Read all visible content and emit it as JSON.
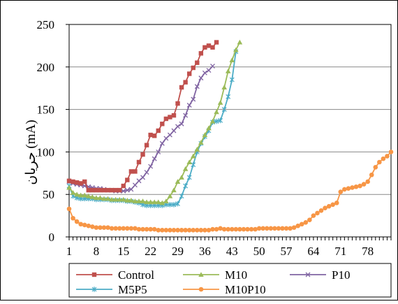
{
  "chart_data": {
    "type": "line",
    "title": "",
    "xlabel": "",
    "ylabel": "جریان (mA)",
    "ylim": [
      0,
      250
    ],
    "xlim": [
      1,
      84
    ],
    "yticks": [
      0,
      50,
      100,
      150,
      200,
      250
    ],
    "xtick_labels": [
      "1",
      "8",
      "15",
      "22",
      "29",
      "36",
      "43",
      "50",
      "57",
      "64",
      "71",
      "78"
    ],
    "grid": "horizontal",
    "legend_position": "bottom",
    "series": [
      {
        "name": "Control",
        "color": "#c0504d",
        "marker": "square",
        "x": [
          1,
          2,
          3,
          4,
          5,
          6,
          7,
          8,
          9,
          10,
          11,
          12,
          13,
          14,
          15,
          16,
          17,
          18,
          19,
          20,
          21,
          22,
          23,
          24,
          25,
          26,
          27,
          28,
          29,
          30,
          31,
          32,
          33,
          34,
          35,
          36,
          37,
          38,
          39
        ],
        "y": [
          66,
          65,
          64,
          63,
          65,
          55,
          55,
          55,
          55,
          55,
          55,
          55,
          55,
          55,
          60,
          67,
          77,
          77,
          88,
          97,
          108,
          120,
          119,
          125,
          133,
          139,
          141,
          143,
          157,
          176,
          182,
          192,
          199,
          205,
          216,
          223,
          225,
          223,
          229
        ]
      },
      {
        "name": "M10",
        "color": "#9bbb59",
        "marker": "triangle",
        "x": [
          1,
          2,
          3,
          4,
          5,
          6,
          7,
          8,
          9,
          10,
          11,
          12,
          13,
          14,
          15,
          16,
          17,
          18,
          19,
          20,
          21,
          22,
          23,
          24,
          25,
          26,
          27,
          28,
          29,
          30,
          31,
          32,
          33,
          34,
          35,
          36,
          37,
          38,
          39,
          40,
          41,
          42,
          43,
          44,
          45
        ],
        "y": [
          58,
          52,
          50,
          49,
          49,
          48,
          47,
          46,
          46,
          45,
          45,
          44,
          44,
          44,
          44,
          43,
          43,
          42,
          42,
          42,
          41,
          41,
          41,
          41,
          40,
          42,
          48,
          55,
          65,
          70,
          80,
          88,
          95,
          103,
          111,
          120,
          128,
          136,
          147,
          158,
          176,
          195,
          208,
          220,
          229
        ]
      },
      {
        "name": "P10",
        "color": "#8064a2",
        "marker": "x",
        "x": [
          1,
          2,
          3,
          4,
          5,
          6,
          7,
          8,
          9,
          10,
          11,
          12,
          13,
          14,
          15,
          16,
          17,
          18,
          19,
          20,
          21,
          22,
          23,
          24,
          25,
          26,
          27,
          28,
          29,
          30,
          31,
          32,
          33,
          34,
          35,
          36,
          37,
          38
        ],
        "y": [
          65,
          63,
          62,
          61,
          60,
          59,
          58,
          57,
          57,
          56,
          55,
          55,
          54,
          54,
          54,
          55,
          56,
          61,
          66,
          70,
          76,
          83,
          92,
          100,
          110,
          116,
          120,
          125,
          130,
          133,
          143,
          155,
          162,
          177,
          187,
          193,
          196,
          201
        ]
      },
      {
        "name": "M5P5",
        "color": "#4bacc6",
        "marker": "star",
        "x": [
          1,
          2,
          3,
          4,
          5,
          6,
          7,
          8,
          9,
          10,
          11,
          12,
          13,
          14,
          15,
          16,
          17,
          18,
          19,
          20,
          21,
          22,
          23,
          24,
          25,
          26,
          27,
          28,
          29,
          30,
          31,
          32,
          33,
          34,
          35,
          36,
          37,
          38,
          39,
          40,
          41,
          42,
          43,
          44
        ],
        "y": [
          60,
          48,
          46,
          45,
          45,
          45,
          45,
          44,
          44,
          44,
          44,
          43,
          43,
          43,
          43,
          42,
          42,
          41,
          40,
          38,
          37,
          37,
          37,
          37,
          37,
          38,
          38,
          38,
          39,
          48,
          60,
          70,
          85,
          100,
          110,
          118,
          125,
          135,
          136,
          137,
          150,
          165,
          185,
          218
        ]
      },
      {
        "name": "M10P10",
        "color": "#f79646",
        "marker": "circle",
        "x": [
          1,
          2,
          3,
          4,
          5,
          6,
          7,
          8,
          9,
          10,
          11,
          12,
          13,
          14,
          15,
          16,
          17,
          18,
          19,
          20,
          21,
          22,
          23,
          24,
          25,
          26,
          27,
          28,
          29,
          30,
          31,
          32,
          33,
          34,
          35,
          36,
          37,
          38,
          39,
          40,
          41,
          42,
          43,
          44,
          45,
          46,
          47,
          48,
          49,
          50,
          51,
          52,
          53,
          54,
          55,
          56,
          57,
          58,
          59,
          60,
          61,
          62,
          63,
          64,
          65,
          66,
          67,
          68,
          69,
          70,
          71,
          72,
          73,
          74,
          75,
          76,
          77,
          78,
          79,
          80,
          81,
          82,
          83,
          84
        ],
        "y": [
          33,
          22,
          18,
          15,
          14,
          13,
          12,
          11,
          11,
          11,
          11,
          10,
          10,
          10,
          10,
          10,
          10,
          10,
          9,
          9,
          9,
          9,
          9,
          8,
          8,
          8,
          8,
          8,
          8,
          8,
          8,
          8,
          8,
          8,
          8,
          8,
          8,
          9,
          9,
          10,
          9,
          9,
          9,
          9,
          9,
          9,
          9,
          9,
          9,
          10,
          10,
          10,
          10,
          10,
          10,
          10,
          10,
          10,
          11,
          13,
          15,
          17,
          20,
          25,
          28,
          31,
          34,
          36,
          38,
          40,
          53,
          56,
          57,
          58,
          59,
          60,
          62,
          65,
          73,
          82,
          88,
          92,
          95,
          100
        ]
      }
    ]
  }
}
